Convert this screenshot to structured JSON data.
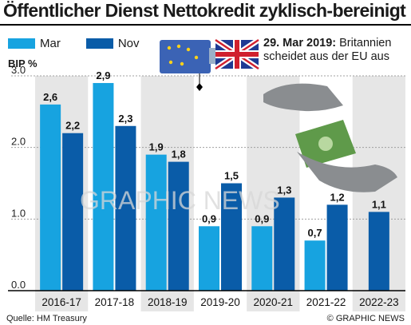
{
  "title": "Öffentlicher Dienst Nettokredit zyklisch-bereinigt",
  "legend": {
    "mar": "Mar",
    "nov": "Nov"
  },
  "colors": {
    "mar": "#17a3e0",
    "nov": "#0a5ca8",
    "shade": "#e6e6e6",
    "grid": "#a0a0a0"
  },
  "event": {
    "date": "29. Mar 2019:",
    "line1": "Britannien",
    "line2": "scheidet aus der EU aus"
  },
  "ylabel": "BIP %",
  "source": "Quelle: HM Treasury",
  "copyright": "© GRAPHIC NEWS",
  "watermark": "GRAPHIC NEWS",
  "chart_data": {
    "type": "bar",
    "categories": [
      "2016-17",
      "2017-18",
      "2018-19",
      "2019-20",
      "2020-21",
      "2021-22",
      "2022-23"
    ],
    "series": [
      {
        "name": "Mar",
        "values": [
          2.6,
          2.9,
          1.9,
          0.9,
          0.9,
          0.7,
          null
        ],
        "labels": [
          "2,6",
          "2,9",
          "1,9",
          "0,9",
          "0,9",
          "0,7",
          ""
        ]
      },
      {
        "name": "Nov",
        "values": [
          2.2,
          2.3,
          1.8,
          1.5,
          1.3,
          1.2,
          1.1
        ],
        "labels": [
          "2,2",
          "2,3",
          "1,8",
          "1,5",
          "1,3",
          "1,2",
          "1,1"
        ]
      }
    ],
    "yticks": [
      "0.0",
      "1.0",
      "2.0",
      "3.0"
    ],
    "ylim": [
      0,
      3.0
    ]
  }
}
